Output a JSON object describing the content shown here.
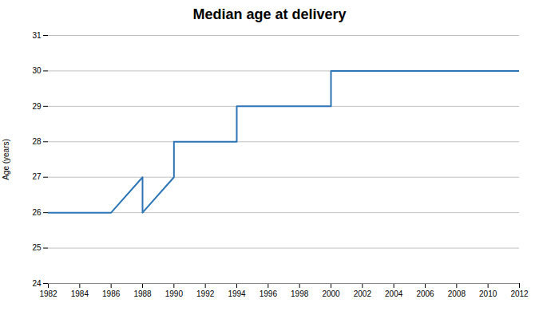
{
  "chart_data": {
    "type": "line",
    "title": "Median age at delivery",
    "ylabel": "Age (years)",
    "x": [
      1982,
      1984,
      1986,
      1988,
      1988,
      1990,
      1990,
      1992,
      1994,
      1994,
      1996,
      1996,
      1998,
      2000,
      2000,
      2002,
      2004,
      2006,
      2008,
      2010,
      2012
    ],
    "values": [
      26,
      26,
      26,
      27,
      26,
      27,
      28,
      28,
      28,
      29,
      29,
      29,
      29,
      29,
      30,
      30,
      30,
      30,
      30,
      30,
      30
    ],
    "color": "#2E75B6",
    "xlim": [
      1982,
      2012
    ],
    "xticks": [
      1982,
      1984,
      1986,
      1988,
      1990,
      1992,
      1994,
      1996,
      1998,
      2000,
      2002,
      2004,
      2006,
      2008,
      2010,
      2012
    ],
    "ylim": [
      24,
      31
    ],
    "yticks": [
      24,
      25,
      26,
      27,
      28,
      29,
      30,
      31
    ],
    "grid": true
  }
}
